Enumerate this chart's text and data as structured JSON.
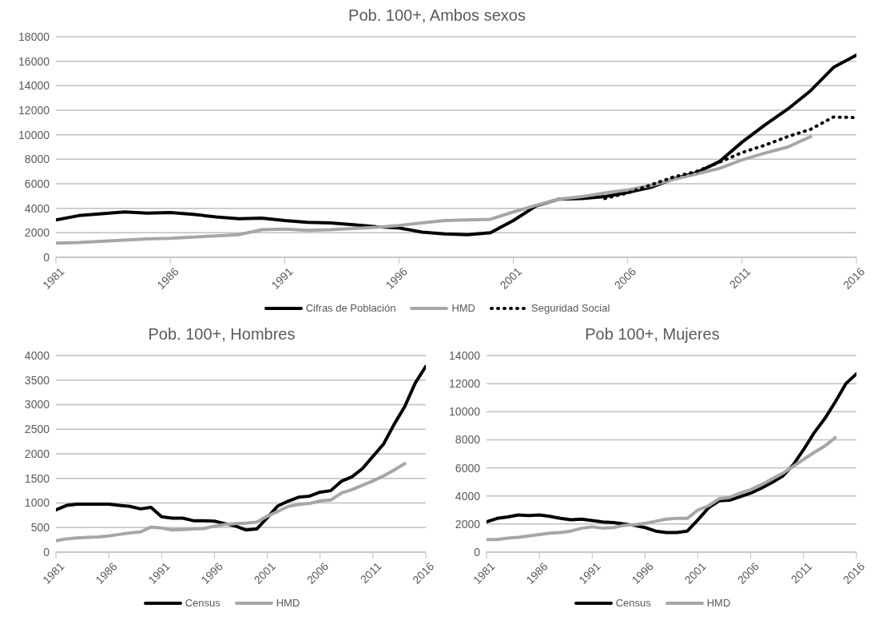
{
  "chart_data": [
    {
      "type": "line",
      "title": "Pob. 100+, Ambos sexos",
      "x": [
        1981,
        1982,
        1983,
        1984,
        1985,
        1986,
        1987,
        1988,
        1989,
        1990,
        1991,
        1992,
        1993,
        1994,
        1995,
        1996,
        1997,
        1998,
        1999,
        2000,
        2001,
        2002,
        2003,
        2004,
        2005,
        2006,
        2007,
        2008,
        2009,
        2010,
        2011,
        2012,
        2013,
        2014,
        2015,
        2016
      ],
      "xlim": [
        1981,
        2016
      ],
      "xticks": [
        1981,
        1986,
        1991,
        1996,
        2001,
        2006,
        2011,
        2016
      ],
      "ylim": [
        0,
        18000
      ],
      "yticks": [
        0,
        2000,
        4000,
        6000,
        8000,
        10000,
        12000,
        14000,
        16000,
        18000
      ],
      "grid": "y",
      "legend": "bottom",
      "series": [
        {
          "name": "Cifras de Población",
          "color": "#000000",
          "line_style": "solid",
          "values": [
            3050,
            3400,
            3550,
            3700,
            3600,
            3650,
            3500,
            3300,
            3150,
            3200,
            3000,
            2850,
            2800,
            2650,
            2500,
            2400,
            2050,
            1900,
            1850,
            2000,
            3000,
            4200,
            4750,
            4800,
            4950,
            5300,
            5700,
            6400,
            6900,
            7800,
            9400,
            10800,
            12100,
            13600,
            15500,
            16500
          ]
        },
        {
          "name": "HMD",
          "color": "#a6a6a6",
          "line_style": "solid",
          "values": [
            1150,
            1200,
            1300,
            1400,
            1500,
            1550,
            1650,
            1750,
            1850,
            2250,
            2300,
            2200,
            2250,
            2350,
            2450,
            2600,
            2800,
            3000,
            3050,
            3100,
            3700,
            4250,
            4750,
            4950,
            5250,
            5500,
            5850,
            6350,
            6800,
            7250,
            7950,
            8500,
            9000,
            9850,
            null,
            null
          ]
        },
        {
          "name": "Seguridad Social",
          "color": "#000000",
          "line_style": "dotted",
          "values": [
            null,
            null,
            null,
            null,
            null,
            null,
            null,
            null,
            null,
            null,
            null,
            null,
            null,
            null,
            null,
            null,
            null,
            null,
            null,
            null,
            null,
            null,
            null,
            null,
            4800,
            5250,
            5900,
            6550,
            7000,
            7750,
            8550,
            9150,
            9850,
            10450,
            11450,
            11400
          ]
        }
      ]
    },
    {
      "type": "line",
      "title": "Pob. 100+, Hombres",
      "x": [
        1981,
        1982,
        1983,
        1984,
        1985,
        1986,
        1987,
        1988,
        1989,
        1990,
        1991,
        1992,
        1993,
        1994,
        1995,
        1996,
        1997,
        1998,
        1999,
        2000,
        2001,
        2002,
        2003,
        2004,
        2005,
        2006,
        2007,
        2008,
        2009,
        2010,
        2011,
        2012,
        2013,
        2014,
        2015,
        2016
      ],
      "xlim": [
        1981,
        2016
      ],
      "xticks": [
        1981,
        1986,
        1991,
        1996,
        2001,
        2006,
        2011,
        2016
      ],
      "ylim": [
        0,
        4000
      ],
      "yticks": [
        0,
        500,
        1000,
        1500,
        2000,
        2500,
        3000,
        3500,
        4000
      ],
      "grid": "y",
      "legend": "bottom",
      "series": [
        {
          "name": "Census",
          "color": "#000000",
          "line_style": "solid",
          "values": [
            860,
            950,
            975,
            975,
            975,
            975,
            950,
            930,
            880,
            910,
            720,
            690,
            690,
            640,
            640,
            630,
            580,
            530,
            450,
            470,
            700,
            940,
            1040,
            1120,
            1140,
            1220,
            1250,
            1440,
            1530,
            1700,
            1950,
            2200,
            2600,
            2960,
            3440,
            3780
          ]
        },
        {
          "name": "HMD",
          "color": "#a6a6a6",
          "line_style": "solid",
          "values": [
            230,
            270,
            290,
            300,
            310,
            330,
            360,
            390,
            410,
            510,
            490,
            450,
            460,
            470,
            480,
            530,
            560,
            580,
            590,
            610,
            730,
            830,
            930,
            970,
            990,
            1040,
            1060,
            1200,
            1270,
            1360,
            1450,
            1550,
            1670,
            1800,
            null,
            null
          ]
        }
      ]
    },
    {
      "type": "line",
      "title": "Pob 100+, Mujeres",
      "x": [
        1981,
        1982,
        1983,
        1984,
        1985,
        1986,
        1987,
        1988,
        1989,
        1990,
        1991,
        1992,
        1993,
        1994,
        1995,
        1996,
        1997,
        1998,
        1999,
        2000,
        2001,
        2002,
        2003,
        2004,
        2005,
        2006,
        2007,
        2008,
        2009,
        2010,
        2011,
        2012,
        2013,
        2014,
        2015,
        2016
      ],
      "xlim": [
        1981,
        2016
      ],
      "xticks": [
        1981,
        1986,
        1991,
        1996,
        2001,
        2006,
        2011,
        2016
      ],
      "ylim": [
        0,
        14000
      ],
      "yticks": [
        0,
        2000,
        4000,
        6000,
        8000,
        10000,
        12000,
        14000
      ],
      "grid": "y",
      "legend": "bottom",
      "series": [
        {
          "name": "Census",
          "color": "#000000",
          "line_style": "solid",
          "values": [
            2150,
            2400,
            2500,
            2650,
            2600,
            2650,
            2550,
            2400,
            2300,
            2350,
            2250,
            2150,
            2100,
            2000,
            1900,
            1750,
            1500,
            1400,
            1400,
            1500,
            2300,
            3150,
            3650,
            3700,
            3950,
            4200,
            4550,
            4950,
            5400,
            6200,
            7300,
            8500,
            9500,
            10700,
            12000,
            12700
          ]
        },
        {
          "name": "HMD",
          "color": "#a6a6a6",
          "line_style": "solid",
          "values": [
            900,
            900,
            1000,
            1050,
            1150,
            1250,
            1350,
            1400,
            1500,
            1700,
            1800,
            1700,
            1750,
            1900,
            1950,
            2050,
            2200,
            2350,
            2400,
            2400,
            3000,
            3300,
            3800,
            3900,
            4200,
            4450,
            4800,
            5200,
            5600,
            6100,
            6600,
            7100,
            7550,
            8150,
            null,
            null
          ]
        }
      ]
    }
  ]
}
